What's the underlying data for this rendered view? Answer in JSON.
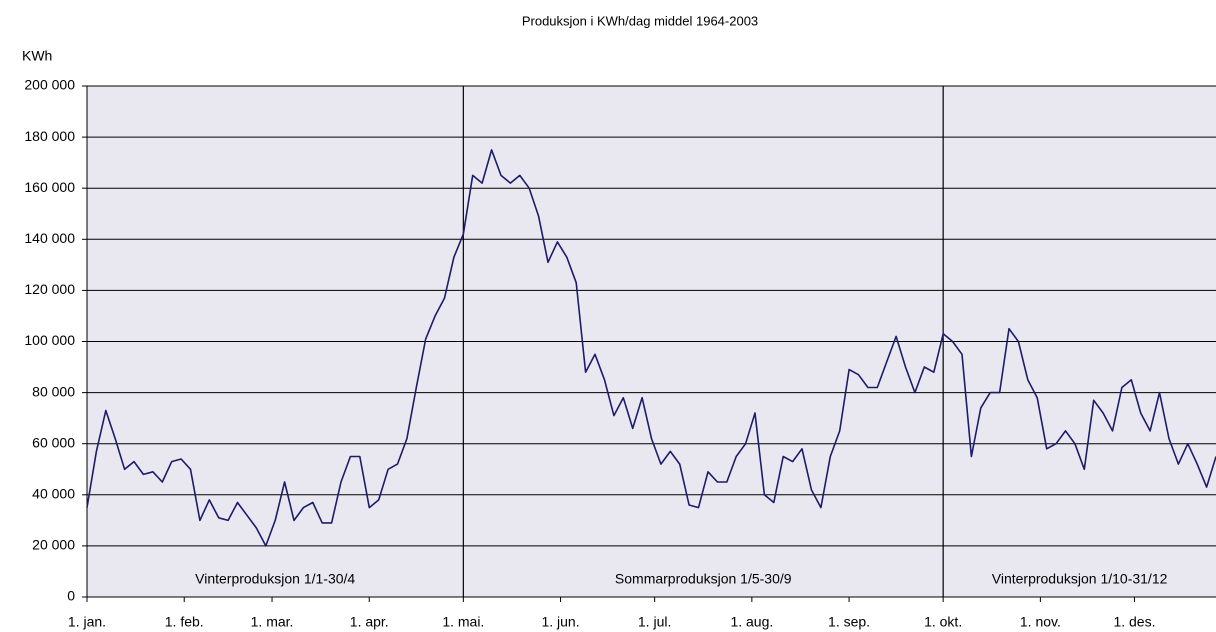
{
  "chart_data": {
    "type": "line",
    "title": "Produksjon i KWh/dag  middel 1964-2003",
    "y_label": "KWh",
    "annotations": [
      "Vinterproduksjon 1/1-30/4",
      "Sommarproduksjon 1/5-30/9",
      "Vinterproduksjon 1/10-31/12"
    ],
    "vlines": [
      121,
      274
    ],
    "x": [
      1,
      4,
      7,
      10,
      13,
      16,
      19,
      22,
      25,
      28,
      31,
      34,
      37,
      40,
      43,
      46,
      49,
      52,
      55,
      58,
      61,
      64,
      67,
      70,
      73,
      76,
      79,
      82,
      85,
      88,
      91,
      94,
      97,
      100,
      103,
      106,
      109,
      112,
      115,
      118,
      121,
      124,
      127,
      130,
      133,
      136,
      139,
      142,
      145,
      148,
      151,
      154,
      157,
      160,
      163,
      166,
      169,
      172,
      175,
      178,
      181,
      184,
      187,
      190,
      193,
      196,
      199,
      202,
      205,
      208,
      211,
      214,
      217,
      220,
      223,
      226,
      229,
      232,
      235,
      238,
      241,
      244,
      247,
      250,
      253,
      256,
      259,
      262,
      265,
      268,
      271,
      274,
      277,
      280,
      283,
      286,
      289,
      292,
      295,
      298,
      301,
      304,
      307,
      310,
      313,
      316,
      319,
      322,
      325,
      328,
      331,
      334,
      337,
      340,
      343,
      346,
      349,
      352,
      355,
      358,
      361
    ],
    "series": [
      {
        "name": "Produksjon",
        "color": "#1c1c6b",
        "values": [
          35000,
          57000,
          73000,
          62000,
          50000,
          53000,
          48000,
          49000,
          45000,
          53000,
          54000,
          50000,
          30000,
          38000,
          31000,
          30000,
          37000,
          32000,
          27000,
          20000,
          30000,
          45000,
          30000,
          35000,
          37000,
          29000,
          29000,
          45000,
          55000,
          55000,
          35000,
          38000,
          50000,
          52000,
          62000,
          82000,
          101000,
          110000,
          117000,
          133000,
          142000,
          165000,
          162000,
          175000,
          165000,
          162000,
          165000,
          160000,
          149000,
          131000,
          139000,
          133000,
          123000,
          88000,
          95000,
          85000,
          71000,
          78000,
          66000,
          78000,
          62000,
          52000,
          57000,
          52000,
          36000,
          35000,
          49000,
          45000,
          45000,
          55000,
          60000,
          72000,
          40000,
          37000,
          55000,
          53000,
          58000,
          42000,
          35000,
          55000,
          65000,
          89000,
          87000,
          82000,
          82000,
          92000,
          102000,
          90000,
          80000,
          90000,
          88000,
          103000,
          100000,
          95000,
          55000,
          74000,
          80000,
          80000,
          105000,
          100000,
          85000,
          78000,
          58000,
          60000,
          65000,
          60000,
          50000,
          77000,
          72000,
          65000,
          82000,
          85000,
          72000,
          65000,
          80000,
          62000,
          52000,
          60000,
          52000,
          43000,
          55000
        ]
      }
    ],
    "xlim": [
      1,
      361
    ],
    "xticks": [
      {
        "value": 1,
        "label": "1. jan."
      },
      {
        "value": 32,
        "label": "1. feb."
      },
      {
        "value": 60,
        "label": "1. mar."
      },
      {
        "value": 91,
        "label": "1. apr."
      },
      {
        "value": 121,
        "label": "1. mai."
      },
      {
        "value": 152,
        "label": "1. jun."
      },
      {
        "value": 182,
        "label": "1. jul."
      },
      {
        "value": 213,
        "label": "1. aug."
      },
      {
        "value": 244,
        "label": "1. sep."
      },
      {
        "value": 274,
        "label": "1. okt."
      },
      {
        "value": 305,
        "label": "1. nov."
      },
      {
        "value": 335,
        "label": "1. des."
      }
    ],
    "ylim": [
      0,
      200000
    ],
    "yticks": [
      0,
      {
        "value": 20000,
        "label": "20 000"
      },
      {
        "value": 40000,
        "label": "40 000"
      },
      {
        "value": 60000,
        "label": "60 000"
      },
      {
        "value": 80000,
        "label": "80 000"
      },
      {
        "value": 100000,
        "label": "100 000"
      },
      {
        "value": 120000,
        "label": "120 000"
      },
      {
        "value": 140000,
        "label": "140 000"
      },
      {
        "value": 160000,
        "label": "160 000"
      },
      {
        "value": 180000,
        "label": "180 000"
      },
      {
        "value": 200000,
        "label": "200 000"
      }
    ],
    "grid": true
  }
}
